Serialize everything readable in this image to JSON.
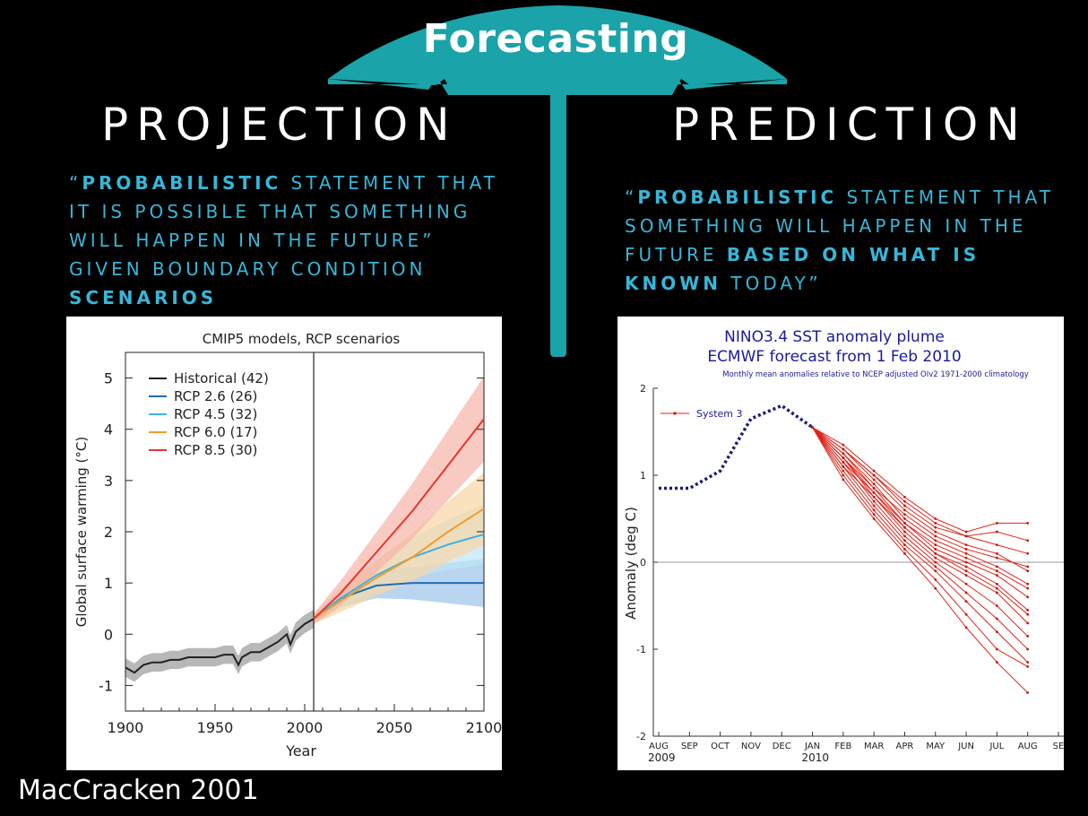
{
  "slide": {
    "umbrella_title": "Forecasting",
    "left_heading": "PROJECTION",
    "right_heading": "PREDICTION",
    "left_quote": {
      "open": "“",
      "bold1": "PROBABILISTIC",
      "rest1": " STATEMENT THAT IT IS POSSIBLE THAT SOMETHING WILL HAPPEN IN THE FUTURE” GIVEN BOUNDARY CONDITION ",
      "bold2": "SCENARIOS"
    },
    "right_quote": {
      "open": "“",
      "bold1": "PROBABILISTIC",
      "rest1": " STATEMENT THAT SOMETHING WILL HAPPEN IN THE FUTURE ",
      "bold2": "BASED ON WHAT IS KNOWN",
      "rest2": " TODAY”"
    },
    "citation": "MacCracken 2001",
    "colors": {
      "umbrella": "#1aa3a8",
      "quote_text": "#38b6d8",
      "background": "#000000"
    }
  },
  "chart_data": [
    {
      "type": "line",
      "title": "CMIP5 models, RCP scenarios",
      "xlabel": "Year",
      "ylabel": "Global surface warming (°C)",
      "xlim": [
        1900,
        2100
      ],
      "ylim": [
        -1.5,
        5.5
      ],
      "xticks": [
        "1900",
        "1950",
        "2000",
        "2050",
        "2100"
      ],
      "yticks": [
        "-1",
        "0",
        "1",
        "2",
        "3",
        "4",
        "5"
      ],
      "legend_position": "top-left",
      "vline": 2005,
      "series": [
        {
          "name": "Historical (42)",
          "color": "#222222",
          "band": "#9a9a9a",
          "x": [
            1900,
            1905,
            1910,
            1915,
            1920,
            1925,
            1930,
            1935,
            1940,
            1945,
            1950,
            1955,
            1960,
            1963,
            1965,
            1970,
            1975,
            1980,
            1985,
            1990,
            1992,
            1995,
            2000,
            2005
          ],
          "y": [
            -0.65,
            -0.75,
            -0.6,
            -0.55,
            -0.55,
            -0.5,
            -0.5,
            -0.45,
            -0.45,
            -0.45,
            -0.45,
            -0.4,
            -0.4,
            -0.6,
            -0.45,
            -0.35,
            -0.35,
            -0.25,
            -0.15,
            0.0,
            -0.2,
            0.05,
            0.2,
            0.3
          ]
        },
        {
          "name": "RCP 2.6 (26)",
          "color": "#1f6fb5",
          "band": "#9cc3ea",
          "x": [
            2005,
            2020,
            2040,
            2060,
            2080,
            2100
          ],
          "y": [
            0.3,
            0.7,
            0.95,
            1.0,
            1.0,
            1.0
          ]
        },
        {
          "name": "RCP 4.5 (32)",
          "color": "#3bb3e3",
          "band": "#bfe6f5",
          "x": [
            2005,
            2020,
            2040,
            2060,
            2080,
            2100
          ],
          "y": [
            0.3,
            0.7,
            1.15,
            1.5,
            1.75,
            1.95
          ]
        },
        {
          "name": "RCP 6.0 (17)",
          "color": "#f39b2c",
          "band": "#f9d6a4",
          "x": [
            2005,
            2020,
            2040,
            2060,
            2080,
            2100
          ],
          "y": [
            0.3,
            0.65,
            1.1,
            1.5,
            2.0,
            2.45
          ]
        },
        {
          "name": "RCP 8.5 (30)",
          "color": "#e8352f",
          "band": "#f6b4a6",
          "x": [
            2005,
            2020,
            2040,
            2060,
            2080,
            2100
          ],
          "y": [
            0.3,
            0.8,
            1.6,
            2.4,
            3.3,
            4.2
          ]
        }
      ]
    },
    {
      "type": "line",
      "title": "NINO3.4 SST anomaly plume",
      "subtitle": "ECMWF forecast from 1 Feb 2010",
      "note": "Monthly mean anomalies relative to NCEP adjusted OIv2 1971-2000 climatology",
      "ylabel": "Anomaly (deg C)",
      "ylim": [
        -2,
        2
      ],
      "yticks": [
        "2",
        "1",
        "0",
        "-1",
        "-2"
      ],
      "categories": [
        "AUG",
        "SEP",
        "OCT",
        "NOV",
        "DEC",
        "JAN",
        "FEB",
        "MAR",
        "APR",
        "MAY",
        "JUN",
        "JUL",
        "AUG",
        "SE"
      ],
      "year_labels": [
        "2009",
        "2010"
      ],
      "legend": "System 3",
      "observed": {
        "x": [
          0,
          1,
          2,
          3,
          4,
          5
        ],
        "y": [
          0.85,
          0.85,
          1.05,
          1.65,
          1.8,
          1.55
        ]
      },
      "ensemble": [
        [
          1.55,
          1.35,
          1.05,
          0.75,
          0.5,
          0.35,
          0.45,
          0.45
        ],
        [
          1.55,
          1.3,
          1.0,
          0.7,
          0.45,
          0.3,
          0.2,
          0.1
        ],
        [
          1.55,
          1.3,
          0.95,
          0.6,
          0.35,
          0.2,
          0.1,
          -0.1
        ],
        [
          1.55,
          1.25,
          0.9,
          0.5,
          0.25,
          0.1,
          -0.05,
          -0.25
        ],
        [
          1.55,
          1.25,
          0.85,
          0.45,
          0.15,
          0.0,
          -0.15,
          -0.4
        ],
        [
          1.55,
          1.2,
          0.8,
          0.4,
          0.1,
          -0.05,
          -0.25,
          -0.55
        ],
        [
          1.55,
          1.2,
          0.75,
          0.35,
          0.05,
          -0.15,
          -0.35,
          -0.7
        ],
        [
          1.55,
          1.15,
          0.7,
          0.3,
          0.0,
          -0.25,
          -0.5,
          -0.85
        ],
        [
          1.55,
          1.1,
          0.65,
          0.25,
          -0.05,
          -0.35,
          -0.65,
          -1.0
        ],
        [
          1.55,
          1.05,
          0.6,
          0.2,
          -0.1,
          -0.45,
          -0.8,
          -1.15
        ],
        [
          1.55,
          1.0,
          0.55,
          0.15,
          -0.2,
          -0.6,
          -1.0,
          -1.2
        ],
        [
          1.55,
          0.95,
          0.5,
          0.1,
          -0.3,
          -0.75,
          -1.15,
          -1.5
        ],
        [
          1.55,
          1.3,
          1.0,
          0.65,
          0.4,
          0.3,
          0.35,
          0.25
        ],
        [
          1.55,
          1.2,
          0.85,
          0.55,
          0.3,
          0.15,
          0.05,
          -0.05
        ],
        [
          1.55,
          1.15,
          0.8,
          0.45,
          0.2,
          0.05,
          -0.1,
          -0.3
        ],
        [
          1.55,
          1.1,
          0.75,
          0.4,
          0.1,
          -0.1,
          -0.3,
          -0.6
        ]
      ]
    }
  ]
}
